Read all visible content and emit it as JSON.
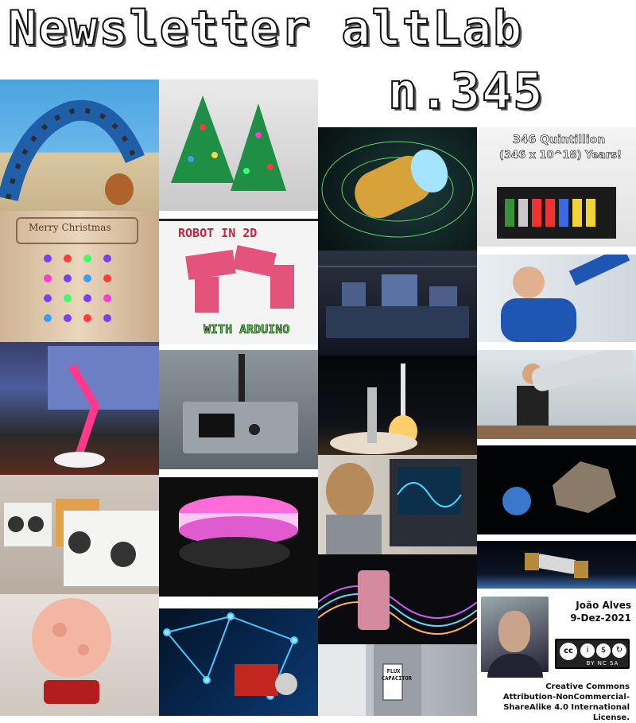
{
  "header": {
    "title_line1": "Newsletter altLab",
    "title_line2": "n.345"
  },
  "tiles": [
    {
      "name": "robot-snake-image",
      "caption": ""
    },
    {
      "name": "christmas-tree-pcb-image",
      "caption": ""
    },
    {
      "name": "merry-christmas-advent-calendar-image",
      "caption": "Merry Christmas"
    },
    {
      "name": "robot-in-2d-image",
      "caption_top": "ROBOT IN 2D",
      "caption_bottom": "WITH ARDUINO"
    },
    {
      "name": "neon-desk-lamp-image",
      "caption": ""
    },
    {
      "name": "esp-device-enclosure-image",
      "caption": ""
    },
    {
      "name": "speaker-boxes-image",
      "caption": ""
    },
    {
      "name": "glowing-disc-lamp-image",
      "caption": ""
    },
    {
      "name": "moon-lamp-image",
      "caption": ""
    },
    {
      "name": "network-pcb-image",
      "caption": ""
    },
    {
      "name": "magnetic-cylinder-image",
      "caption": ""
    },
    {
      "name": "quintillion-years-machine-image",
      "caption_line1": "346 Quintillion",
      "caption_line2": "(346 x 10^18) Years!"
    },
    {
      "name": "laboratory-optics-table-image",
      "caption": ""
    },
    {
      "name": "scientist-whiteboard-image",
      "caption": ""
    },
    {
      "name": "rocket-launch-image",
      "caption": ""
    },
    {
      "name": "giant-gun-prop-image",
      "caption": ""
    },
    {
      "name": "oscilloscope-image",
      "caption": ""
    },
    {
      "name": "asteroid-earth-image",
      "caption": ""
    },
    {
      "name": "hubble-telescope-image",
      "caption": ""
    },
    {
      "name": "quantum-chip-waves-image",
      "caption": ""
    },
    {
      "name": "flux-capacitor-badge-image",
      "caption": "FLUX CAPACITOR"
    }
  ],
  "author": {
    "name": "João Alves",
    "date": "9-Dez-2021",
    "license_line1": "Creative Commons",
    "license_line2": "Attribution-NonCommercial-",
    "license_line3": "ShareAlike 4.0 International",
    "license_line4": "License.",
    "badge_labels": "BY NC SA"
  },
  "colors": {
    "title_fill": "#ffffff",
    "title_stroke": "#111111"
  }
}
